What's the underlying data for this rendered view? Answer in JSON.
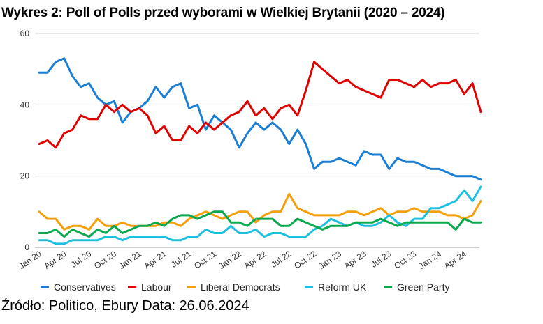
{
  "title": "Wykres 2: Poll of Polls przed wyborami w Wielkiej Brytanii (2020 – 2024)",
  "source": "Źródło: Politico, Ebury Data: 26.06.2024",
  "chart_data": {
    "type": "line",
    "title": "Wykres 2: Poll of Polls przed wyborami w Wielkiej Brytanii (2020 – 2024)",
    "xlabel": "",
    "ylabel": "",
    "ylim": [
      0,
      60
    ],
    "yticks": [
      0,
      20,
      40,
      60
    ],
    "grid": true,
    "legend": "bottom",
    "x_ticks": [
      "Jan 20",
      "Apr 20",
      "Jul 20",
      "Oct 20",
      "Jan 21",
      "Apr 21",
      "Jul 21",
      "Oct 21",
      "Jan 22",
      "Apr 22",
      "Jul 22",
      "Oct 22",
      "Jan 23",
      "Apr 23",
      "Jul 23",
      "Oct 23",
      "Jan 24",
      "Apr 24"
    ],
    "x": [
      "Jan 20",
      "Feb 20",
      "Mar 20",
      "Apr 20",
      "May 20",
      "Jun 20",
      "Jul 20",
      "Aug 20",
      "Sep 20",
      "Oct 20",
      "Nov 20",
      "Dec 20",
      "Jan 21",
      "Feb 21",
      "Mar 21",
      "Apr 21",
      "May 21",
      "Jun 21",
      "Jul 21",
      "Aug 21",
      "Sep 21",
      "Oct 21",
      "Nov 21",
      "Dec 21",
      "Jan 22",
      "Feb 22",
      "Mar 22",
      "Apr 22",
      "May 22",
      "Jun 22",
      "Jul 22",
      "Aug 22",
      "Sep 22",
      "Oct 22",
      "Nov 22",
      "Dec 22",
      "Jan 23",
      "Feb 23",
      "Mar 23",
      "Apr 23",
      "May 23",
      "Jun 23",
      "Jul 23",
      "Aug 23",
      "Sep 23",
      "Oct 23",
      "Nov 23",
      "Dec 23",
      "Jan 24",
      "Feb 24",
      "Mar 24",
      "Apr 24",
      "May 24",
      "Jun 24"
    ],
    "series": [
      {
        "name": "Conservatives",
        "color": "#1a7fd4",
        "values": [
          49,
          49,
          52,
          53,
          48,
          45,
          46,
          42,
          40,
          41,
          35,
          38,
          39,
          41,
          45,
          42,
          45,
          46,
          39,
          40,
          33,
          37,
          35,
          33,
          28,
          32,
          35,
          33,
          35,
          33,
          29,
          33,
          29,
          22,
          24,
          24,
          25,
          24,
          23,
          27,
          26,
          26,
          22,
          25,
          24,
          24,
          23,
          22,
          22,
          21,
          20,
          20,
          20,
          19
        ]
      },
      {
        "name": "Labour",
        "color": "#e00000",
        "values": [
          29,
          30,
          28,
          32,
          33,
          37,
          36,
          36,
          40,
          38,
          40,
          38,
          39,
          37,
          32,
          34,
          30,
          30,
          34,
          32,
          35,
          33,
          35,
          37,
          38,
          41,
          37,
          39,
          36,
          39,
          40,
          37,
          44,
          52,
          50,
          48,
          46,
          47,
          45,
          44,
          43,
          42,
          47,
          47,
          46,
          45,
          47,
          45,
          46,
          46,
          47,
          43,
          46,
          38
        ]
      },
      {
        "name": "Liberal Democrats",
        "color": "#f5a00a",
        "values": [
          10,
          8,
          8,
          5,
          6,
          6,
          5,
          8,
          6,
          6,
          7,
          6,
          6,
          6,
          6,
          7,
          7,
          6,
          8,
          9,
          10,
          9,
          8,
          9,
          10,
          10,
          7,
          9,
          10,
          10,
          15,
          11,
          10,
          9,
          9,
          9,
          9,
          10,
          10,
          9,
          10,
          11,
          9,
          10,
          10,
          11,
          10,
          10,
          10,
          9,
          9,
          8,
          9,
          13
        ]
      },
      {
        "name": "Reform UK",
        "color": "#1ec0e0",
        "values": [
          2,
          2,
          1,
          1,
          2,
          2,
          2,
          2,
          3,
          3,
          2,
          3,
          3,
          3,
          3,
          3,
          2,
          2,
          3,
          3,
          5,
          4,
          4,
          6,
          4,
          4,
          5,
          3,
          4,
          4,
          3,
          3,
          3,
          5,
          6,
          8,
          7,
          6,
          7,
          6,
          6,
          7,
          9,
          7,
          6,
          8,
          8,
          11,
          11,
          12,
          13,
          16,
          13,
          17
        ]
      },
      {
        "name": "Green Party",
        "color": "#0aa84f",
        "values": [
          4,
          4,
          5,
          3,
          5,
          4,
          3,
          5,
          4,
          6,
          4,
          5,
          6,
          6,
          7,
          6,
          8,
          9,
          9,
          8,
          9,
          10,
          10,
          7,
          7,
          6,
          8,
          8,
          8,
          6,
          6,
          8,
          7,
          6,
          5,
          6,
          6,
          6,
          7,
          7,
          7,
          8,
          7,
          6,
          7,
          7,
          7,
          7,
          7,
          7,
          5,
          8,
          7,
          7
        ]
      }
    ]
  }
}
